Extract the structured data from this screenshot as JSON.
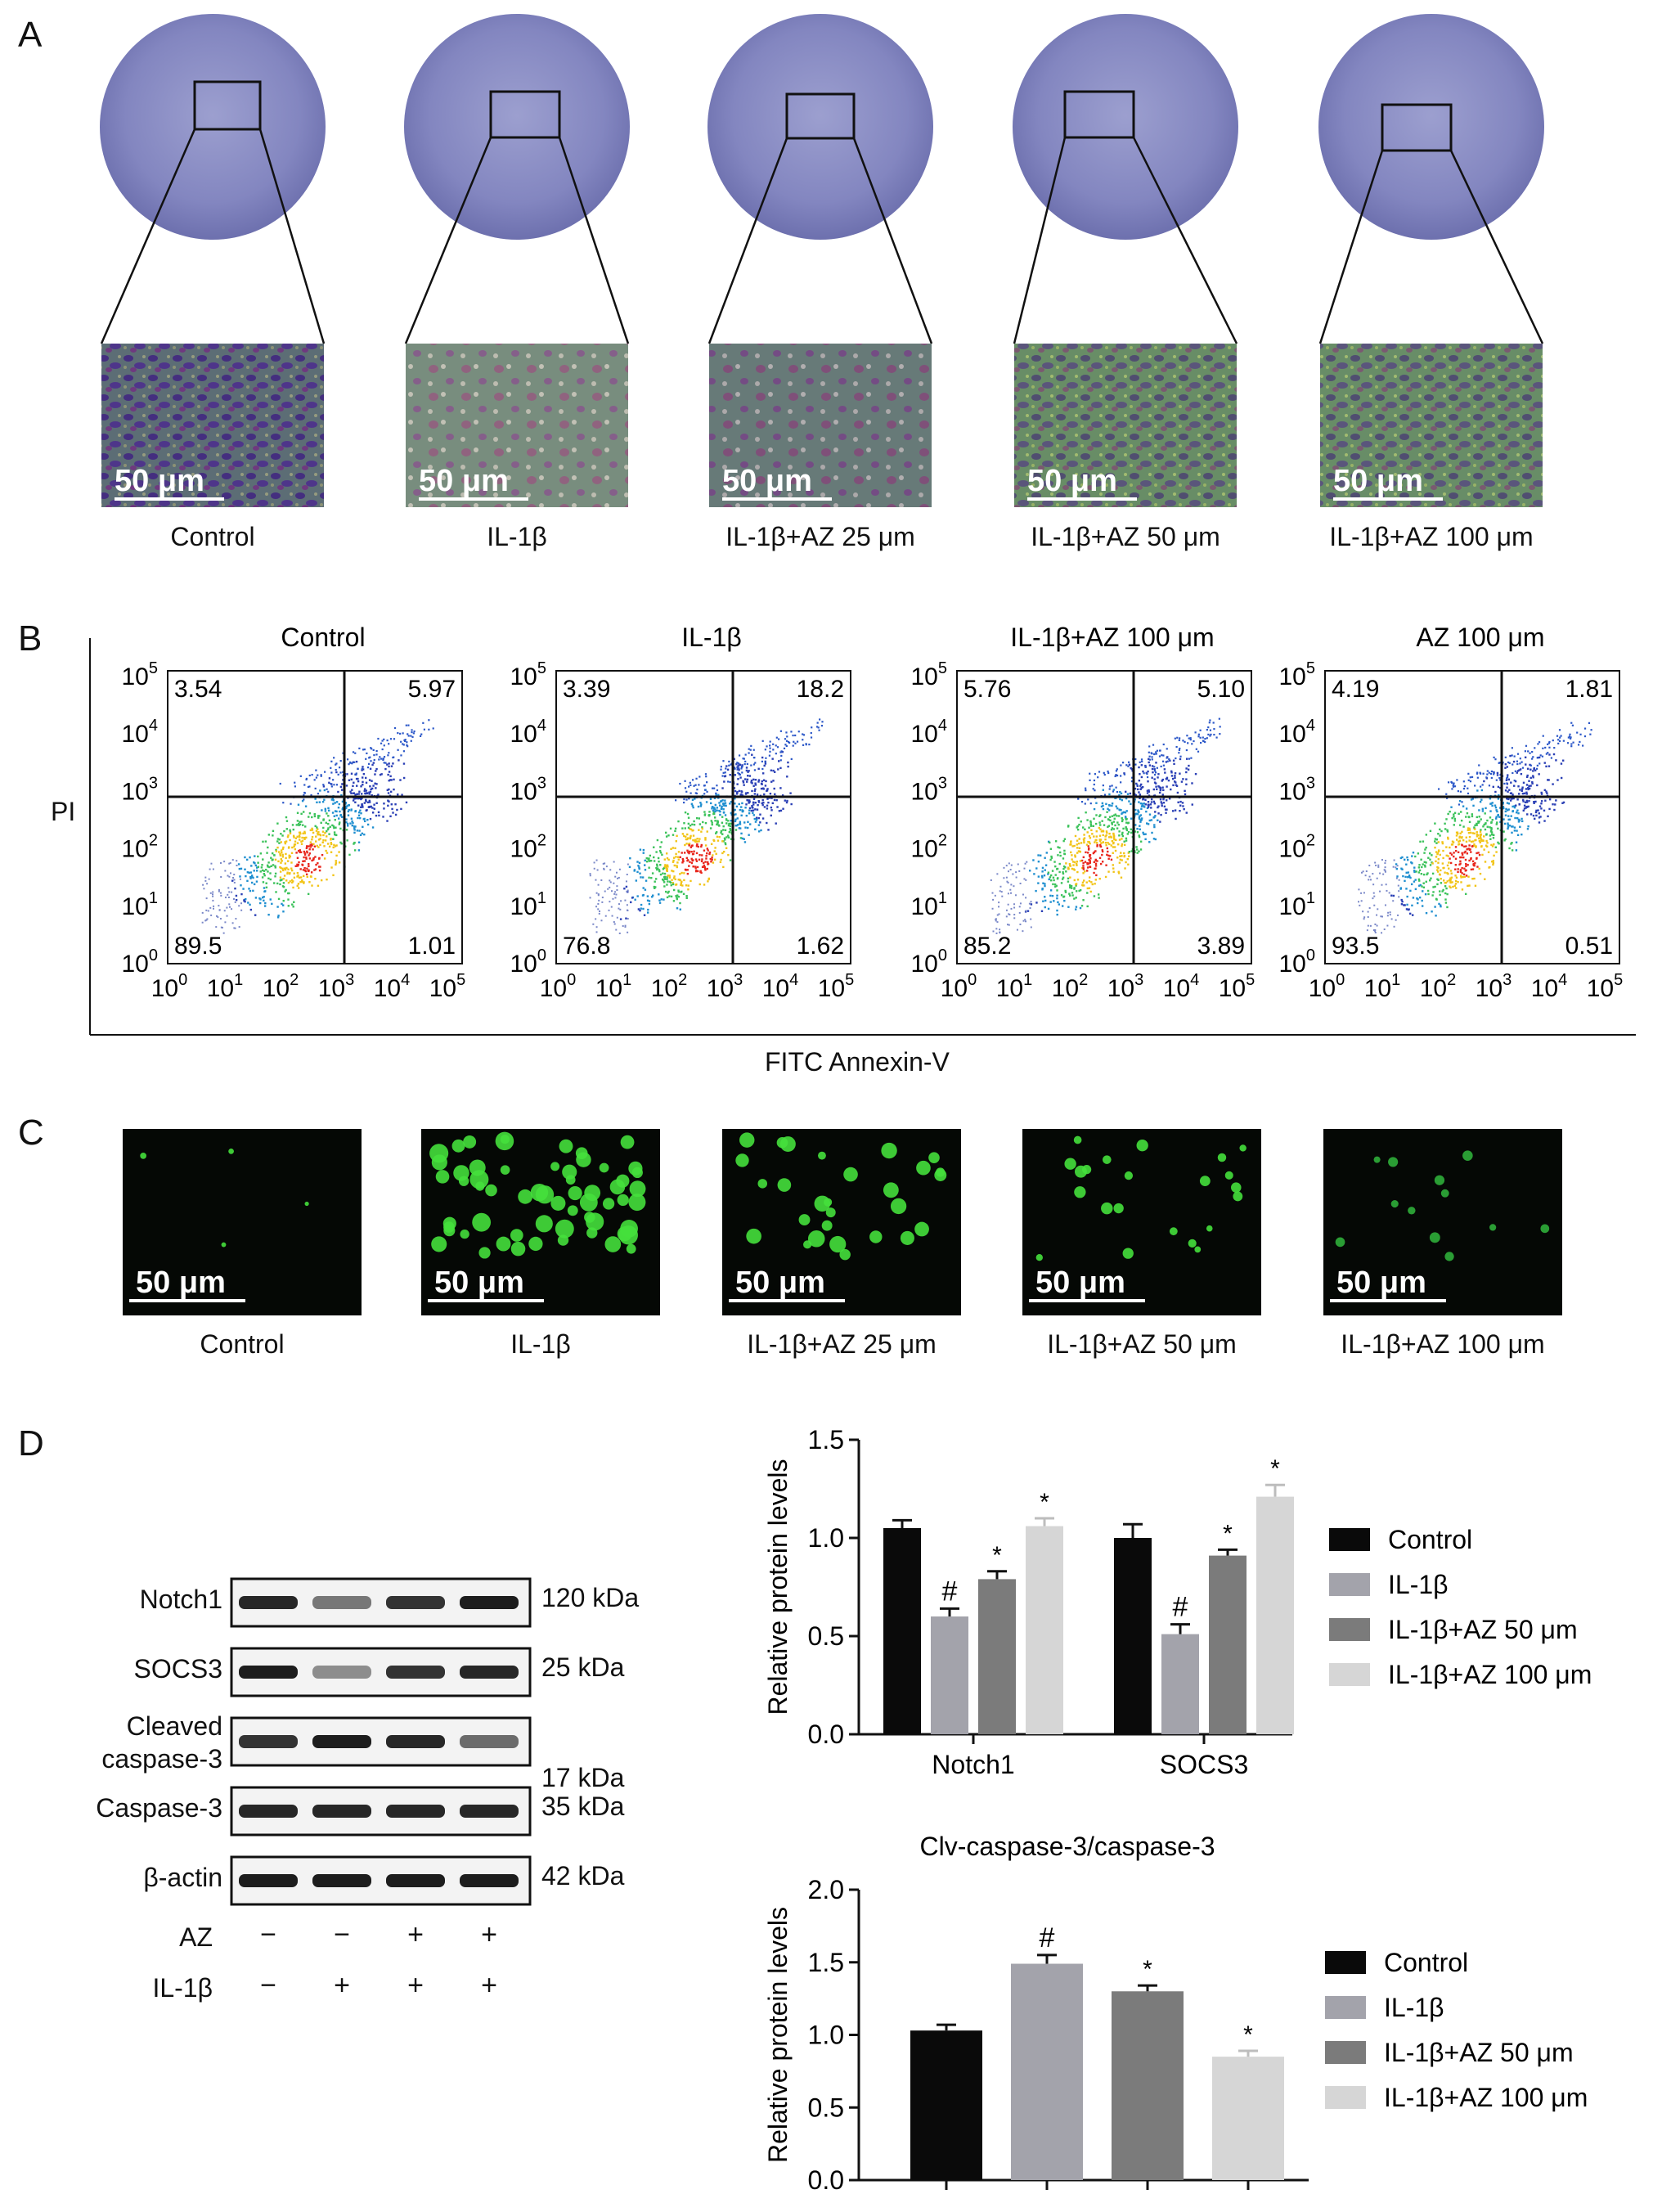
{
  "panels": {
    "A": {
      "letter": "A",
      "scale_bar": "50 μm",
      "groups": [
        "Control",
        "IL-1β",
        "IL-1β+AZ 25 μm",
        "IL-1β+AZ 50 μm",
        "IL-1β+AZ 100 μm"
      ]
    },
    "B": {
      "letter": "B",
      "groups": [
        "Control",
        "IL-1β",
        "IL-1β+AZ 100 μm",
        "AZ 100 μm"
      ],
      "y_axis_label": "PI",
      "x_axis_label": "FITC Annexin-V",
      "ticks": [
        "10",
        "10",
        "10",
        "10",
        "10",
        "10"
      ],
      "tick_exponents": [
        "0",
        "1",
        "2",
        "3",
        "4",
        "5"
      ],
      "quadrants": [
        {
          "ul": "3.54",
          "ur": "5.97",
          "ll": "89.5",
          "lr": "1.01"
        },
        {
          "ul": "3.39",
          "ur": "18.2",
          "ll": "76.8",
          "lr": "1.62"
        },
        {
          "ul": "5.76",
          "ur": "5.10",
          "ll": "85.2",
          "lr": "3.89"
        },
        {
          "ul": "4.19",
          "ur": "1.81",
          "ll": "93.5",
          "lr": "0.51"
        }
      ]
    },
    "C": {
      "letter": "C",
      "scale_bar": "50 μm",
      "groups": [
        "Control",
        "IL-1β",
        "IL-1β+AZ 25 μm",
        "IL-1β+AZ 50 μm",
        "IL-1β+AZ 100 μm"
      ]
    },
    "D": {
      "letter": "D",
      "blot_rows": [
        {
          "name": "Notch1",
          "size": "120 kDa"
        },
        {
          "name": "SOCS3",
          "size": "25 kDa"
        },
        {
          "name": "Cleaved caspase-3",
          "size": "17 kDa"
        },
        {
          "name": "Caspase-3",
          "size": "35 kDa"
        },
        {
          "name": "β-actin",
          "size": "42 kDa"
        }
      ],
      "treatment_rows": [
        {
          "name": "AZ",
          "signs": [
            "−",
            "−",
            "+",
            "+"
          ]
        },
        {
          "name": "IL-1β",
          "signs": [
            "−",
            "+",
            "+",
            "+"
          ]
        }
      ]
    }
  },
  "colors": {
    "control": "#0a0a0a",
    "il1b": "#a3a3ab",
    "az50": "#7b7b7b",
    "az100": "#d6d6d6"
  },
  "chart_data": [
    {
      "type": "bar",
      "title": "",
      "ylabel": "Relative protein levels",
      "ylim": [
        0,
        1.5
      ],
      "yticks": [
        "0.0",
        "0.5",
        "1.0",
        "1.5"
      ],
      "categories": [
        "Notch1",
        "SOCS3"
      ],
      "series": [
        {
          "name": "Control",
          "values": [
            1.05,
            1.0
          ],
          "errors": [
            0.04,
            0.07
          ],
          "marks": [
            "",
            ""
          ]
        },
        {
          "name": "IL-1β",
          "values": [
            0.6,
            0.51
          ],
          "errors": [
            0.04,
            0.05
          ],
          "marks": [
            "#",
            "#"
          ]
        },
        {
          "name": "IL-1β+AZ 50 μm",
          "values": [
            0.79,
            0.91
          ],
          "errors": [
            0.04,
            0.03
          ],
          "marks": [
            "*",
            "*"
          ]
        },
        {
          "name": "IL-1β+AZ 100 μm",
          "values": [
            1.06,
            1.21
          ],
          "errors": [
            0.04,
            0.06
          ],
          "marks": [
            "*",
            "*"
          ]
        }
      ],
      "legend": "right"
    },
    {
      "type": "bar",
      "title": "Clv-caspase-3/caspase-3",
      "ylabel": "Relative protein levels",
      "ylim": [
        0,
        2.0
      ],
      "yticks": [
        "0.0",
        "0.5",
        "1.0",
        "1.5",
        "2.0"
      ],
      "categories": [
        ""
      ],
      "series": [
        {
          "name": "Control",
          "values": [
            1.03
          ],
          "errors": [
            0.04
          ],
          "marks": [
            ""
          ]
        },
        {
          "name": "IL-1β",
          "values": [
            1.49
          ],
          "errors": [
            0.06
          ],
          "marks": [
            "#"
          ]
        },
        {
          "name": "IL-1β+AZ 50 μm",
          "values": [
            1.3
          ],
          "errors": [
            0.04
          ],
          "marks": [
            "*"
          ]
        },
        {
          "name": "IL-1β+AZ 100 μm",
          "values": [
            0.85
          ],
          "errors": [
            0.04
          ],
          "marks": [
            "*"
          ]
        }
      ],
      "legend": "right"
    }
  ]
}
